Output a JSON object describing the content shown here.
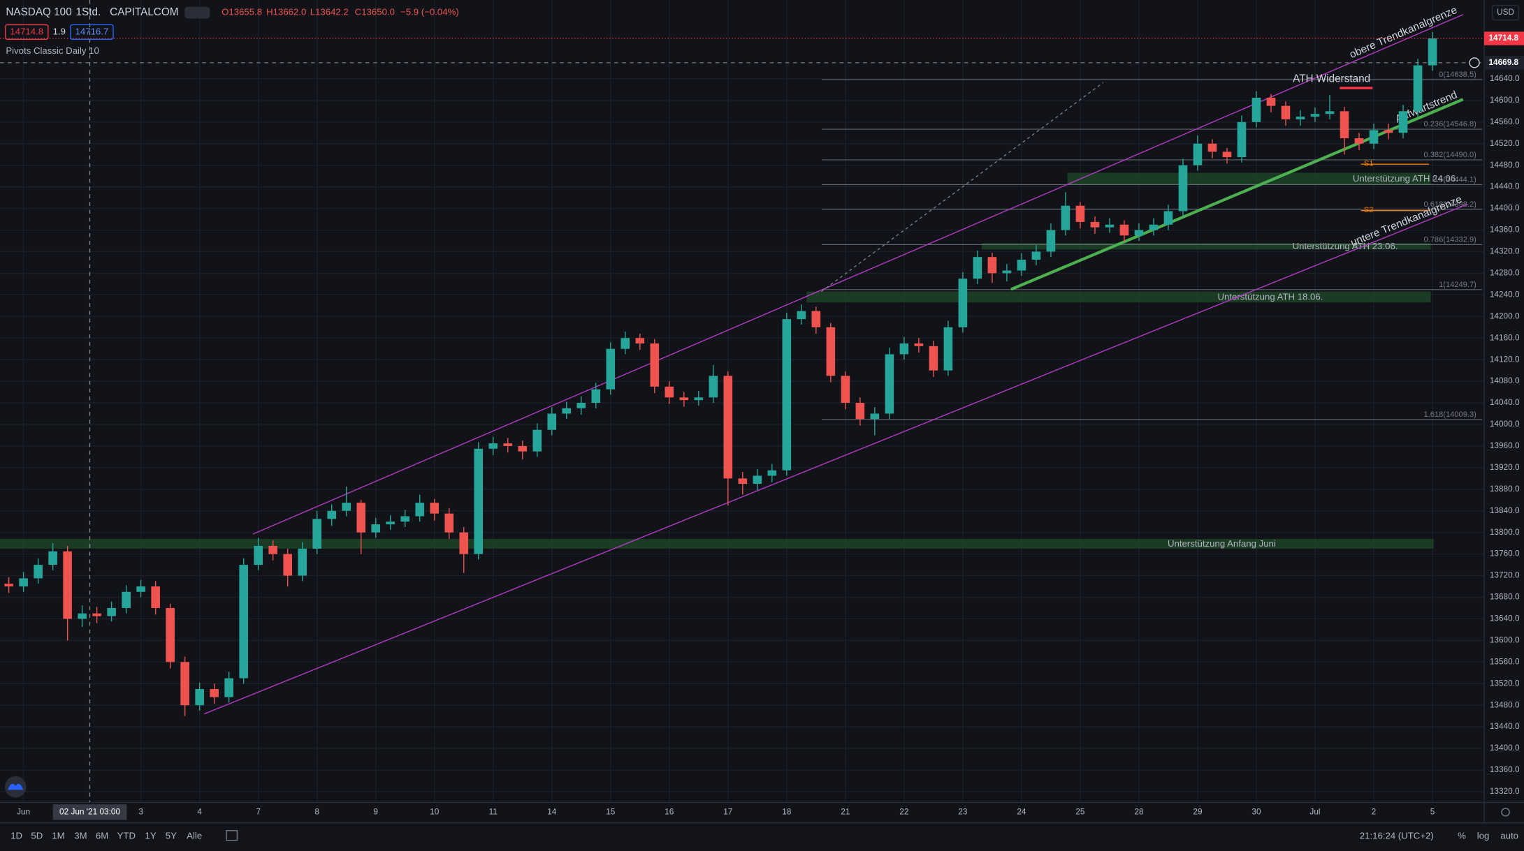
{
  "chart_data": {
    "type": "candlestick",
    "title": "NASDAQ 100",
    "interval": "1Std.",
    "source": "CAPITALCOM",
    "readout": [
      "O13655.8",
      "H13662.0",
      "L13642.2",
      "C13650.0",
      "−5.9 (−0.04%)"
    ],
    "quote": {
      "bid": "14714.8",
      "spread": "1.9",
      "ask": "14716.7"
    },
    "indicator": "Pivots Classic Daily 10",
    "currency": "USD",
    "up_color": "#26a69a",
    "down_color": "#ef5350",
    "grid": true,
    "xlim": [
      -0.4,
      24.88
    ],
    "ylim": [
      13300,
      14786
    ],
    "xticks": [
      {
        "value": 0,
        "label": "Jun"
      },
      {
        "value": 2,
        "label": "3"
      },
      {
        "value": 3,
        "label": "4"
      },
      {
        "value": 4,
        "label": "7"
      },
      {
        "value": 5,
        "label": "8"
      },
      {
        "value": 6,
        "label": "9"
      },
      {
        "value": 7,
        "label": "10"
      },
      {
        "value": 8,
        "label": "11"
      },
      {
        "value": 9,
        "label": "14"
      },
      {
        "value": 10,
        "label": "15"
      },
      {
        "value": 11,
        "label": "16"
      },
      {
        "value": 12,
        "label": "17"
      },
      {
        "value": 13,
        "label": "18"
      },
      {
        "value": 14,
        "label": "21"
      },
      {
        "value": 15,
        "label": "22"
      },
      {
        "value": 16,
        "label": "23"
      },
      {
        "value": 17,
        "label": "24"
      },
      {
        "value": 18,
        "label": "25"
      },
      {
        "value": 19,
        "label": "28"
      },
      {
        "value": 20,
        "label": "29"
      },
      {
        "value": 21,
        "label": "30"
      },
      {
        "value": 22,
        "label": "Jul"
      },
      {
        "value": 23,
        "label": "2"
      },
      {
        "value": 24,
        "label": "5"
      }
    ],
    "yticks": [
      {
        "value": 13320,
        "label": "13320.0"
      },
      {
        "value": 13360,
        "label": "13360.0"
      },
      {
        "value": 13400,
        "label": "13400.0"
      },
      {
        "value": 13440,
        "label": "13440.0"
      },
      {
        "value": 13480,
        "label": "13480.0"
      },
      {
        "value": 13520,
        "label": "13520.0"
      },
      {
        "value": 13560,
        "label": "13560.0"
      },
      {
        "value": 13600,
        "label": "13600.0"
      },
      {
        "value": 13640,
        "label": "13640.0"
      },
      {
        "value": 13680,
        "label": "13680.0"
      },
      {
        "value": 13720,
        "label": "13720.0"
      },
      {
        "value": 13760,
        "label": "13760.0"
      },
      {
        "value": 13800,
        "label": "13800.0"
      },
      {
        "value": 13840,
        "label": "13840.0"
      },
      {
        "value": 13880,
        "label": "13880.0"
      },
      {
        "value": 13920,
        "label": "13920.0"
      },
      {
        "value": 13960,
        "label": "13960.0"
      },
      {
        "value": 14000,
        "label": "14000.0"
      },
      {
        "value": 14040,
        "label": "14040.0"
      },
      {
        "value": 14080,
        "label": "14080.0"
      },
      {
        "value": 14120,
        "label": "14120.0"
      },
      {
        "value": 14160,
        "label": "14160.0"
      },
      {
        "value": 14200,
        "label": "14200.0"
      },
      {
        "value": 14240,
        "label": "14240.0"
      },
      {
        "value": 14280,
        "label": "14280.0"
      },
      {
        "value": 14320,
        "label": "14320.0"
      },
      {
        "value": 14360,
        "label": "14360.0"
      },
      {
        "value": 14400,
        "label": "14400.0"
      },
      {
        "value": 14440,
        "label": "14440.0"
      },
      {
        "value": 14480,
        "label": "14480.0"
      },
      {
        "value": 14520,
        "label": "14520.0"
      },
      {
        "value": 14560,
        "label": "14560.0"
      },
      {
        "value": 14600,
        "label": "14600.0"
      },
      {
        "value": 14640,
        "label": "14640.0"
      }
    ],
    "x": [
      -0.25,
      0,
      0.25,
      0.5,
      0.75,
      1,
      1.25,
      1.5,
      1.75,
      2,
      2.25,
      2.5,
      2.75,
      3,
      3.25,
      3.5,
      3.75,
      4,
      4.25,
      4.5,
      4.75,
      5,
      5.25,
      5.5,
      5.75,
      6,
      6.25,
      6.5,
      6.75,
      7,
      7.25,
      7.5,
      7.75,
      8,
      8.25,
      8.5,
      8.75,
      9,
      9.25,
      9.5,
      9.75,
      10,
      10.25,
      10.5,
      10.75,
      11,
      11.25,
      11.5,
      11.75,
      12,
      12.25,
      12.5,
      12.75,
      13,
      13.25,
      13.5,
      13.75,
      14,
      14.25,
      14.5,
      14.75,
      15,
      15.25,
      15.5,
      15.75,
      16,
      16.25,
      16.5,
      16.75,
      17,
      17.25,
      17.5,
      17.75,
      18,
      18.25,
      18.5,
      18.75,
      19,
      19.25,
      19.5,
      19.75,
      20,
      20.25,
      20.5,
      20.75,
      21,
      21.25,
      21.5,
      21.75,
      22,
      22.25,
      22.5,
      22.75,
      23,
      23.25,
      23.5,
      23.75,
      24
    ],
    "ohlc": [
      [
        13705,
        13717,
        13688,
        13700
      ],
      [
        13700,
        13727,
        13690,
        13715
      ],
      [
        13715,
        13752,
        13705,
        13740
      ],
      [
        13740,
        13780,
        13730,
        13765
      ],
      [
        13765,
        13775,
        13600,
        13640
      ],
      [
        13640,
        13665,
        13625,
        13650
      ],
      [
        13650,
        13662,
        13632,
        13645
      ],
      [
        13645,
        13672,
        13635,
        13660
      ],
      [
        13660,
        13702,
        13650,
        13690
      ],
      [
        13690,
        13712,
        13680,
        13700
      ],
      [
        13700,
        13710,
        13648,
        13660
      ],
      [
        13660,
        13668,
        13548,
        13560
      ],
      [
        13560,
        13570,
        13460,
        13480
      ],
      [
        13480,
        13522,
        13470,
        13510
      ],
      [
        13510,
        13520,
        13483,
        13495
      ],
      [
        13495,
        13542,
        13485,
        13530
      ],
      [
        13530,
        13752,
        13520,
        13740
      ],
      [
        13740,
        13790,
        13730,
        13775
      ],
      [
        13775,
        13785,
        13748,
        13760
      ],
      [
        13760,
        13770,
        13700,
        13720
      ],
      [
        13720,
        13782,
        13710,
        13770
      ],
      [
        13770,
        13840,
        13760,
        13825
      ],
      [
        13825,
        13852,
        13812,
        13840
      ],
      [
        13840,
        13885,
        13830,
        13855
      ],
      [
        13855,
        13860,
        13760,
        13800
      ],
      [
        13800,
        13827,
        13790,
        13815
      ],
      [
        13815,
        13832,
        13805,
        13820
      ],
      [
        13820,
        13842,
        13810,
        13830
      ],
      [
        13830,
        13870,
        13820,
        13855
      ],
      [
        13855,
        13862,
        13822,
        13835
      ],
      [
        13835,
        13845,
        13788,
        13800
      ],
      [
        13800,
        13810,
        13725,
        13760
      ],
      [
        13760,
        13967,
        13750,
        13955
      ],
      [
        13955,
        13977,
        13943,
        13965
      ],
      [
        13965,
        13975,
        13948,
        13960
      ],
      [
        13960,
        13970,
        13935,
        13950
      ],
      [
        13950,
        14002,
        13940,
        13990
      ],
      [
        13990,
        14032,
        13980,
        14020
      ],
      [
        14020,
        14042,
        14010,
        14030
      ],
      [
        14030,
        14052,
        14018,
        14040
      ],
      [
        14040,
        14077,
        14030,
        14065
      ],
      [
        14065,
        14152,
        14055,
        14140
      ],
      [
        14140,
        14172,
        14130,
        14160
      ],
      [
        14160,
        14168,
        14138,
        14150
      ],
      [
        14150,
        14158,
        14058,
        14070
      ],
      [
        14070,
        14080,
        14038,
        14050
      ],
      [
        14050,
        14060,
        14033,
        14045
      ],
      [
        14045,
        14062,
        14035,
        14050
      ],
      [
        14050,
        14110,
        14040,
        14090
      ],
      [
        14090,
        14098,
        13850,
        13900
      ],
      [
        13900,
        13912,
        13870,
        13890
      ],
      [
        13890,
        13917,
        13878,
        13905
      ],
      [
        13905,
        13927,
        13893,
        13915
      ],
      [
        13915,
        14207,
        13905,
        14195
      ],
      [
        14195,
        14222,
        14185,
        14210
      ],
      [
        14210,
        14218,
        14168,
        14180
      ],
      [
        14180,
        14188,
        14078,
        14090
      ],
      [
        14090,
        14098,
        14028,
        14040
      ],
      [
        14040,
        14050,
        13998,
        14010
      ],
      [
        14010,
        14032,
        13980,
        14020
      ],
      [
        14020,
        14142,
        14010,
        14130
      ],
      [
        14130,
        14162,
        14120,
        14150
      ],
      [
        14150,
        14160,
        14133,
        14145
      ],
      [
        14145,
        14155,
        14088,
        14100
      ],
      [
        14100,
        14192,
        14090,
        14180
      ],
      [
        14180,
        14282,
        14170,
        14270
      ],
      [
        14270,
        14322,
        14260,
        14310
      ],
      [
        14310,
        14318,
        14262,
        14280
      ],
      [
        14280,
        14297,
        14265,
        14285
      ],
      [
        14285,
        14317,
        14275,
        14305
      ],
      [
        14305,
        14332,
        14295,
        14320
      ],
      [
        14320,
        14372,
        14310,
        14360
      ],
      [
        14360,
        14430,
        14350,
        14405
      ],
      [
        14405,
        14412,
        14363,
        14375
      ],
      [
        14375,
        14385,
        14353,
        14365
      ],
      [
        14365,
        14382,
        14355,
        14370
      ],
      [
        14370,
        14378,
        14338,
        14350
      ],
      [
        14350,
        14372,
        14340,
        14360
      ],
      [
        14360,
        14382,
        14350,
        14370
      ],
      [
        14370,
        14407,
        14360,
        14395
      ],
      [
        14395,
        14492,
        14385,
        14480
      ],
      [
        14480,
        14535,
        14470,
        14520
      ],
      [
        14520,
        14528,
        14493,
        14505
      ],
      [
        14505,
        14512,
        14483,
        14495
      ],
      [
        14495,
        14572,
        14485,
        14560
      ],
      [
        14560,
        14617,
        14550,
        14605
      ],
      [
        14605,
        14612,
        14578,
        14590
      ],
      [
        14590,
        14598,
        14553,
        14565
      ],
      [
        14565,
        14582,
        14553,
        14570
      ],
      [
        14570,
        14587,
        14560,
        14575
      ],
      [
        14575,
        14610,
        14565,
        14580
      ],
      [
        14580,
        14588,
        14500,
        14530
      ],
      [
        14530,
        14540,
        14508,
        14520
      ],
      [
        14520,
        14557,
        14510,
        14545
      ],
      [
        14545,
        14557,
        14528,
        14540
      ],
      [
        14540,
        14592,
        14530,
        14580
      ],
      [
        14580,
        14677,
        14570,
        14665
      ],
      [
        14665,
        14727,
        14655,
        14715
      ]
    ],
    "lines": [
      {
        "label": "obere Trendkanalgrenze",
        "x": [
          3.91,
          24.52
        ],
        "y": [
          13797,
          14759
        ],
        "color": "#b23cc6",
        "kind": "channel"
      },
      {
        "label": "untere Trendkanalgrenze",
        "x": [
          3.08,
          24.6
        ],
        "y": [
          13464,
          14408
        ],
        "color": "#b23cc6",
        "kind": "channel"
      },
      {
        "label": "Aufwärtstrend",
        "x": [
          16.82,
          24.52
        ],
        "y": [
          14250,
          14602
        ],
        "color": "#4caf50",
        "kind": "trend"
      },
      {
        "x": [
          13.59,
          18.39
        ],
        "y": [
          14246,
          14633
        ],
        "color": "#787b86",
        "kind": "dashed"
      }
    ],
    "zones": [
      {
        "label": "Unterstützung Anfang Juni",
        "x": [
          -0.4,
          24.02
        ],
        "y": [
          13770,
          13788
        ]
      },
      {
        "label": "Unterstützung ATH 18.06.",
        "x": [
          13.34,
          23.97
        ],
        "y": [
          14226,
          14246
        ]
      },
      {
        "label": "Unterstützung ATH 23.06.",
        "x": [
          16.32,
          23.97
        ],
        "y": [
          14324,
          14336
        ]
      },
      {
        "label": "Unterstützung ATH 24.06.",
        "x": [
          17.78,
          23.97
        ],
        "y": [
          14444,
          14466
        ]
      }
    ],
    "zone_color": "#1f4a2a",
    "fib_start": 13.6,
    "fib_color": "#787b86",
    "fib_levels": [
      {
        "value": 14638.5,
        "label": "0(14638.5)"
      },
      {
        "value": 14546.8,
        "label": "0.236(14546.8)"
      },
      {
        "value": 14490.0,
        "label": "0.382(14490.0)"
      },
      {
        "value": 14444.1,
        "label": "0.5(14444.1)"
      },
      {
        "value": 14398.2,
        "label": "0.618(14398.2)"
      },
      {
        "value": 14332.9,
        "label": "0.786(14332.9)"
      },
      {
        "value": 14249.7,
        "label": "1(14249.7)"
      },
      {
        "value": 14009.3,
        "label": "1.618(14009.3)"
      }
    ],
    "pivot_color": "#f57c00",
    "pivots": [
      {
        "label": "S1",
        "value": 14482,
        "x": [
          22.78,
          23.94
        ]
      },
      {
        "label": "S2",
        "value": 14396,
        "x": [
          22.78,
          23.94
        ]
      }
    ],
    "resistance": {
      "label": "ATH Widerstand",
      "value": 14623,
      "x": [
        22.42,
        22.98
      ],
      "color": "#f23645"
    },
    "last_price": {
      "value": 14714.8,
      "label": "14714.8",
      "color": "#f23645"
    },
    "crosshair_price": {
      "value": 14669.8,
      "label": "14669.8"
    },
    "crosshair_x": {
      "value": 1.13,
      "label": "02 Jun '21 03:00"
    }
  },
  "toolbar": {
    "ranges": [
      "1D",
      "5D",
      "1M",
      "3M",
      "6M",
      "YTD",
      "1Y",
      "5Y",
      "Alle"
    ],
    "clock": "21:16:24 (UTC+2)",
    "percent": "%",
    "log": "log",
    "auto": "auto"
  }
}
